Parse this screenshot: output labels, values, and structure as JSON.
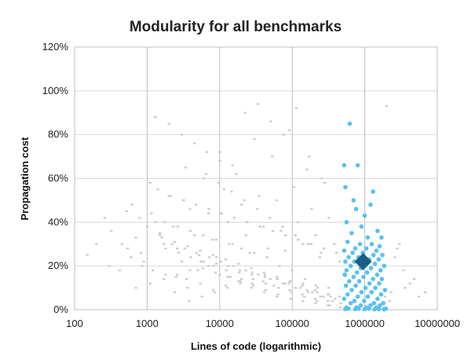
{
  "chart_data": {
    "type": "scatter",
    "title": "Modularity for all benchmarks",
    "xlabel": "Lines of code (logarithmic)",
    "ylabel": "Propagation cost",
    "x_scale": "log",
    "xlim": [
      100,
      10000000
    ],
    "ylim": [
      0,
      120
    ],
    "x_ticks": [
      "100",
      "1000",
      "10000",
      "100000",
      "1000000",
      "10000000"
    ],
    "y_ticks": [
      "0%",
      "20%",
      "40%",
      "60%",
      "80%",
      "100%",
      "120%"
    ],
    "grid": true,
    "legend": "none",
    "colors": {
      "benchmarks": "#c8c8c8",
      "target": "#5bc0f0",
      "mean": "#1a5f86"
    },
    "series": [
      {
        "role": "benchmarks",
        "color": "#c8c8c8",
        "x": [
          260,
          320,
          450,
          540,
          620,
          700,
          820,
          900,
          1100,
          1300,
          1500,
          1700,
          2000,
          2300,
          2600,
          3000,
          3400,
          3900,
          4500,
          5200,
          6000,
          7000,
          8000,
          9000,
          10000,
          11500,
          13000,
          15000,
          17000,
          20000,
          23000,
          26000,
          30000,
          35000,
          40000,
          46000,
          53000,
          61000,
          70000,
          80000,
          92000,
          105000,
          120000,
          140000,
          160000,
          185000,
          210000,
          240000,
          280000,
          320000,
          380000,
          450000,
          150,
          200,
          300,
          420,
          600,
          850,
          1200,
          1800,
          2500,
          3500,
          5000,
          7000,
          10000,
          14000,
          20000,
          28000,
          40000,
          56000,
          80000,
          112000,
          160000,
          220000,
          320000,
          450000,
          1800,
          2700,
          4000,
          6000,
          9000,
          13000,
          19000,
          28000,
          42000,
          62000,
          90000,
          130000,
          190000,
          270000,
          390000,
          1000,
          1500,
          2200,
          3300,
          4800,
          7200,
          10500,
          15500,
          23000,
          34000,
          50000,
          75000,
          110000,
          165000,
          245000,
          360000,
          700,
          1100,
          1700,
          2600,
          3900,
          5900,
          8800,
          13000,
          19500,
          29000,
          43000,
          64000,
          95000,
          140000,
          210000,
          310000,
          460000,
          520,
          780,
          1150,
          1750,
          2650,
          3950,
          5950,
          8950,
          13400,
          20000,
          30000,
          45000,
          67000,
          100000,
          150000,
          225000,
          340000,
          1300,
          2000,
          3000,
          4500,
          6700,
          10000,
          15000,
          22500,
          33800,
          50600,
          76000,
          114000,
          171000,
          256000,
          3200,
          4700,
          7100,
          10600,
          15900,
          23900,
          35800,
          53700,
          80500,
          120800,
          181000,
          272000,
          408000,
          2400,
          3600,
          5400,
          8100,
          12100,
          18200,
          27300,
          41000,
          61500,
          92200,
          138000,
          207000,
          311000,
          466000,
          1400,
          2100,
          3150,
          4700,
          7100,
          10600,
          16000,
          24000,
          36000,
          54000,
          81000,
          121500,
          182000,
          273000,
          410000,
          5500,
          8300,
          12400,
          18600,
          27900,
          41900,
          62800,
          94200,
          141000,
          212000,
          318000,
          6500,
          9700,
          14600,
          21900,
          32800,
          49200,
          73800,
          110700,
          166000,
          249000,
          3800,
          5700,
          8500,
          12800,
          19200,
          28800,
          43200,
          64800,
          97200,
          145800,
          218700,
          328000,
          1600,
          2400,
          3600,
          5400,
          8100,
          12150,
          18225,
          27340,
          41000,
          61500,
          92250,
          138400,
          207600,
          311400,
          2000000,
          2600000,
          3400000,
          4200000,
          2300000,
          3000000,
          1900000,
          2800000,
          4800000,
          5600000,
          6800000,
          2200000,
          3600000
        ],
        "y": [
          42,
          36,
          30,
          28,
          48,
          33,
          26,
          22,
          58,
          40,
          35,
          30,
          52,
          38,
          28,
          22,
          65,
          46,
          34,
          25,
          60,
          44,
          32,
          24,
          72,
          55,
          40,
          30,
          62,
          48,
          34,
          26,
          78,
          52,
          38,
          28,
          70,
          50,
          36,
          27,
          82,
          56,
          40,
          30,
          64,
          46,
          34,
          24,
          58,
          42,
          30,
          22,
          25,
          30,
          20,
          18,
          24,
          20,
          18,
          16,
          15,
          14,
          18,
          20,
          16,
          15,
          14,
          12,
          13,
          11,
          12,
          10,
          9,
          8,
          7,
          6,
          28,
          26,
          24,
          22,
          21,
          20,
          18,
          17,
          16,
          14,
          12,
          10,
          8,
          6,
          5,
          38,
          34,
          30,
          28,
          26,
          24,
          22,
          20,
          18,
          16,
          14,
          12,
          10,
          8,
          6,
          4,
          10,
          12,
          14,
          16,
          18,
          19,
          17,
          15,
          13,
          11,
          9,
          7,
          5,
          4,
          3,
          2,
          1,
          45,
          42,
          44,
          40,
          38,
          36,
          34,
          32,
          30,
          28,
          26,
          24,
          20,
          18,
          14,
          10,
          6,
          88,
          85,
          80,
          76,
          72,
          68,
          66,
          90,
          94,
          86,
          80,
          92,
          70,
          60,
          50,
          48,
          46,
          44,
          42,
          40,
          38,
          36,
          34,
          32,
          30,
          28,
          26,
          8,
          10,
          12,
          9,
          11,
          13,
          10,
          8,
          6,
          9,
          7,
          5,
          4,
          3,
          55,
          52,
          50,
          48,
          46,
          44,
          42,
          40,
          38,
          36,
          34,
          32,
          30,
          28,
          26,
          22,
          20,
          18,
          17,
          16,
          15,
          14,
          13,
          12,
          11,
          10,
          62,
          58,
          54,
          50,
          46,
          42,
          38,
          34,
          30,
          26,
          4,
          6,
          8,
          10,
          12,
          14,
          12,
          10,
          8,
          6,
          4,
          2,
          33,
          31,
          29,
          27,
          25,
          23,
          21,
          19,
          17,
          15,
          13,
          11,
          9,
          7,
          93,
          24,
          18,
          12,
          8,
          30,
          6,
          28,
          14,
          6,
          8,
          4,
          10
        ]
      },
      {
        "role": "target",
        "color": "#5bc0f0",
        "x": [
          620000,
          520000,
          800000,
          540000,
          700000,
          1200000,
          760000,
          1000000,
          1300000,
          560000,
          900000,
          1500000,
          660000,
          1100000,
          1700000,
          580000,
          860000,
          1250000,
          1600000,
          740000,
          1050000,
          1450000,
          520000,
          680000,
          940000,
          1320000,
          1750000,
          600000,
          820000,
          1150000,
          1550000,
          540000,
          720000,
          980000,
          1380000,
          1850000,
          640000,
          880000,
          1220000,
          1650000,
          560000,
          780000,
          1080000,
          1480000,
          530000,
          700000,
          960000,
          1300000,
          1720000,
          610000,
          840000,
          1160000,
          1580000,
          550000,
          750000,
          1020000,
          1400000,
          1900000,
          660000,
          900000,
          1240000,
          1680000,
          580000,
          800000,
          1100000,
          1500000,
          520000,
          720000,
          980000,
          1340000,
          1800000,
          640000,
          880000,
          1200000,
          1620000,
          560000,
          770000,
          1060000,
          1440000,
          1950000,
          600000,
          820000,
          1140000,
          1560000,
          540000,
          740000,
          1000000,
          1360000,
          1840000
        ],
        "y": [
          85,
          66,
          66,
          56,
          50,
          48,
          46,
          43,
          54,
          40,
          38,
          36,
          35,
          33,
          33,
          31,
          30,
          30,
          29,
          28,
          28,
          27,
          27,
          26,
          26,
          25,
          25,
          24,
          24,
          23,
          23,
          22,
          22,
          21,
          21,
          20,
          20,
          19,
          19,
          18,
          18,
          17,
          17,
          16,
          16,
          15,
          15,
          14,
          14,
          13,
          13,
          12,
          12,
          11,
          11,
          10,
          10,
          9,
          9,
          8,
          8,
          7,
          7,
          6,
          6,
          5,
          5,
          4,
          4,
          3,
          3,
          3,
          2,
          2,
          2,
          1,
          1,
          1,
          1,
          0.5,
          0.5,
          0.5,
          0.5,
          0.3,
          0.3,
          0.3,
          0.3,
          0.2,
          0.2
        ]
      },
      {
        "role": "mean",
        "color": "#1a5f86",
        "marker": "diamond",
        "x": [
          950000
        ],
        "y": [
          22
        ]
      }
    ]
  }
}
